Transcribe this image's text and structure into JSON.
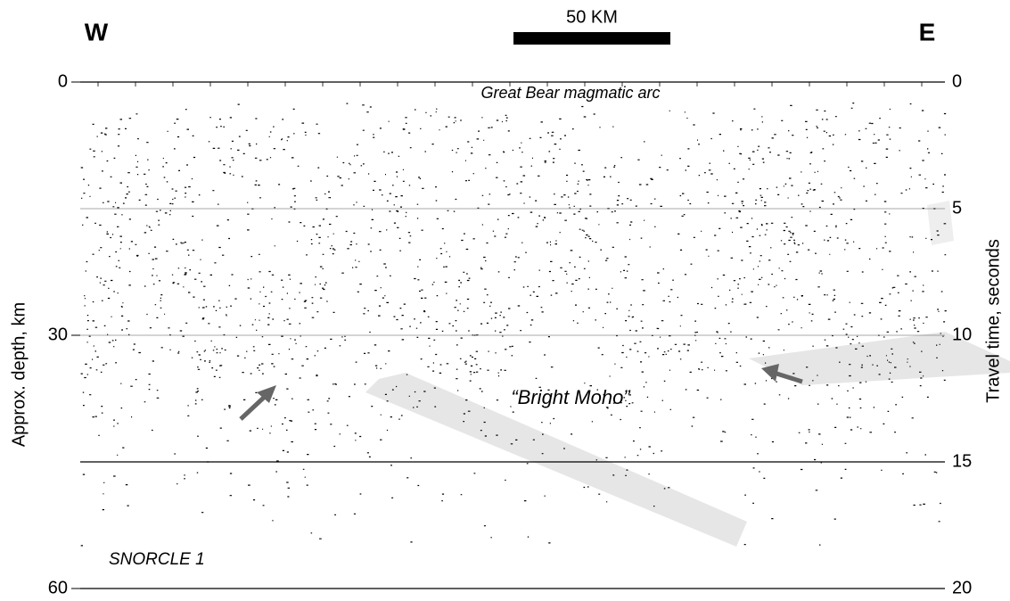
{
  "header": {
    "west": "W",
    "east": "E",
    "scale_bar": "50 KM"
  },
  "annotations": {
    "arc": "Great Bear magmatic arc",
    "moho": "“Bright Moho”",
    "line_name": "SNORCLE 1"
  },
  "left_axis": {
    "label": "Approx. depth, km",
    "range": [
      0,
      60
    ],
    "ticks": [
      0,
      30,
      60
    ]
  },
  "right_axis": {
    "label": "Travel time, seconds",
    "range": [
      0,
      20
    ],
    "ticks": [
      0,
      5,
      10,
      15,
      20
    ]
  }
}
